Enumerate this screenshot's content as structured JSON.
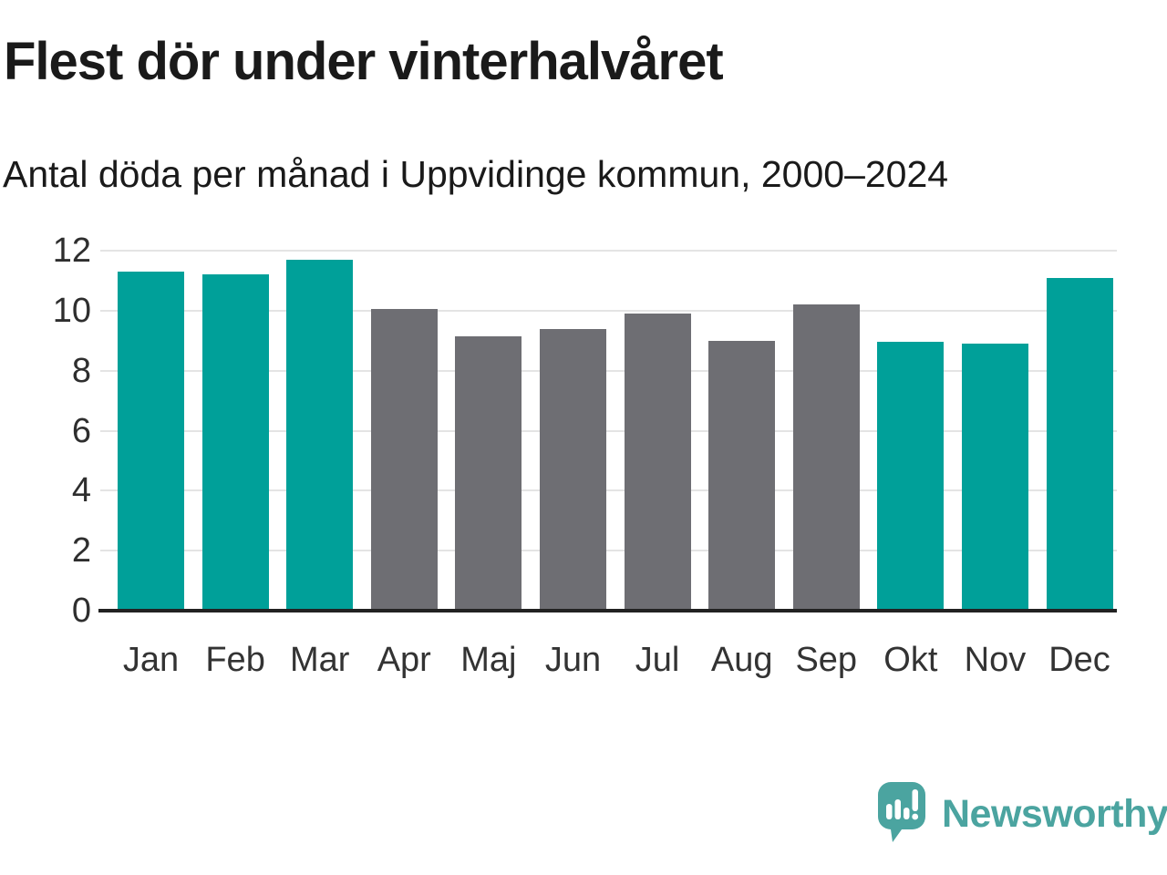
{
  "title": "Flest dör under vinterhalvåret",
  "subtitle": "Antal döda per månad i Uppvidinge kommun, 2000–2024",
  "branding": {
    "logo_text": "Newsworthy",
    "logo_icon": "speech-bubble-with-bar-chart-and-exclamation"
  },
  "colors": {
    "highlight": "#00a099",
    "neutral": "#6e6e73",
    "grid": "#e4e4e4",
    "axis_line": "#222222",
    "text": "#1a1a1a",
    "logo_teal": "#4ba4a0"
  },
  "chart_data": {
    "type": "bar",
    "title": "Flest dör under vinterhalvåret",
    "subtitle": "Antal döda per månad i Uppvidinge kommun, 2000–2024",
    "categories": [
      "Jan",
      "Feb",
      "Mar",
      "Apr",
      "Maj",
      "Jun",
      "Jul",
      "Aug",
      "Sep",
      "Okt",
      "Nov",
      "Dec"
    ],
    "values": [
      11.3,
      11.2,
      11.7,
      10.05,
      9.15,
      9.4,
      9.9,
      9.0,
      10.2,
      8.95,
      8.9,
      11.1
    ],
    "bar_roles": [
      "highlight",
      "highlight",
      "highlight",
      "neutral",
      "neutral",
      "neutral",
      "neutral",
      "neutral",
      "neutral",
      "highlight",
      "highlight",
      "highlight"
    ],
    "xlabel": "",
    "ylabel": "",
    "ylim": [
      0,
      12
    ],
    "yticks": [
      0,
      2,
      4,
      6,
      8,
      10,
      12
    ],
    "grid": "horizontal",
    "legend": "none"
  }
}
